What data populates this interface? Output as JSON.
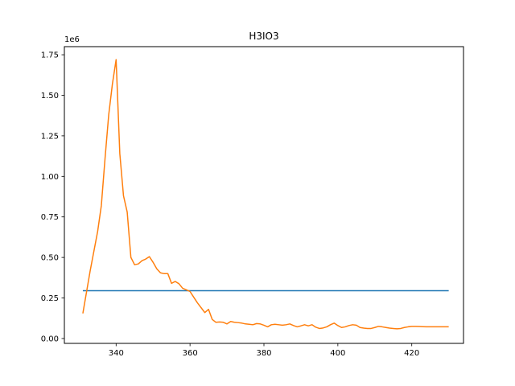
{
  "chart_data": {
    "type": "line",
    "title": "H3IO3",
    "xlabel": "",
    "ylabel": "",
    "y_offset_label": "1e6",
    "xlim": [
      326,
      434
    ],
    "ylim": [
      -30000,
      1800000
    ],
    "x_ticks": [
      340,
      360,
      380,
      400,
      420
    ],
    "y_ticks": [
      0,
      250000,
      500000,
      750000,
      1000000,
      1250000,
      1500000,
      1750000
    ],
    "y_tick_labels": [
      "0.00",
      "0.25",
      "0.50",
      "0.75",
      "1.00",
      "1.25",
      "1.50",
      "1.75"
    ],
    "grid": false,
    "series": [
      {
        "color": "#1f77b4",
        "x": [
          331,
          430
        ],
        "y": [
          295000,
          295000
        ]
      },
      {
        "color": "#ff7f0e",
        "x": [
          331,
          333,
          335,
          336,
          337,
          338,
          339,
          340,
          341,
          342,
          343,
          344,
          345,
          346,
          347,
          348,
          349,
          350,
          351,
          352,
          353,
          354,
          355,
          356,
          357,
          358,
          359,
          360,
          361,
          362,
          363,
          364,
          365,
          366,
          367,
          368,
          369,
          370,
          371,
          372,
          373,
          374,
          375,
          376,
          377,
          378,
          379,
          380,
          381,
          382,
          383,
          384,
          385,
          386,
          387,
          388,
          389,
          390,
          391,
          392,
          393,
          394,
          395,
          396,
          397,
          398,
          399,
          400,
          401,
          402,
          403,
          404,
          405,
          406,
          407,
          408,
          409,
          410,
          411,
          412,
          413,
          414,
          415,
          416,
          417,
          418,
          419,
          420,
          421,
          422,
          423,
          424,
          425,
          426,
          427,
          428,
          429,
          430
        ],
        "y": [
          155000,
          420000,
          660000,
          820000,
          1110000,
          1380000,
          1570000,
          1720000,
          1140000,
          880000,
          780000,
          500000,
          455000,
          460000,
          480000,
          490000,
          505000,
          470000,
          430000,
          405000,
          400000,
          400000,
          340000,
          352000,
          338000,
          310000,
          300000,
          290000,
          255000,
          220000,
          190000,
          160000,
          180000,
          118000,
          100000,
          102000,
          100000,
          90000,
          105000,
          100000,
          98000,
          95000,
          90000,
          88000,
          85000,
          92000,
          90000,
          82000,
          72000,
          85000,
          88000,
          85000,
          82000,
          85000,
          90000,
          80000,
          72000,
          78000,
          85000,
          78000,
          85000,
          70000,
          62000,
          65000,
          72000,
          85000,
          95000,
          80000,
          68000,
          72000,
          80000,
          85000,
          82000,
          68000,
          64000,
          62000,
          62000,
          68000,
          75000,
          72000,
          68000,
          64000,
          62000,
          60000,
          62000,
          68000,
          72000,
          75000,
          75000,
          74000,
          73000,
          72000,
          72000,
          72000,
          72000,
          72000,
          72000,
          72000
        ]
      }
    ]
  }
}
